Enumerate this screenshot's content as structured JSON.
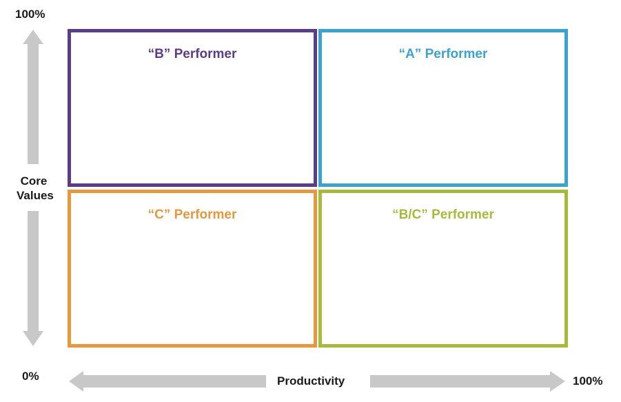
{
  "y_axis": {
    "top_label": "100%",
    "bottom_label": "0%",
    "title_line1": "Core",
    "title_line2": "Values"
  },
  "x_axis": {
    "title": "Productivity",
    "right_label": "100%"
  },
  "quadrants": {
    "top_left": {
      "label": "“B” Performer",
      "color": "#5b3b8c"
    },
    "top_right": {
      "label": "“A” Performer",
      "color": "#3aa3cf"
    },
    "bottom_left": {
      "label": "“C” Performer",
      "color": "#e8973a"
    },
    "bottom_right": {
      "label": "“B/C” Performer",
      "color": "#a9ba3a"
    }
  },
  "arrow_color": "#c8c8c8"
}
